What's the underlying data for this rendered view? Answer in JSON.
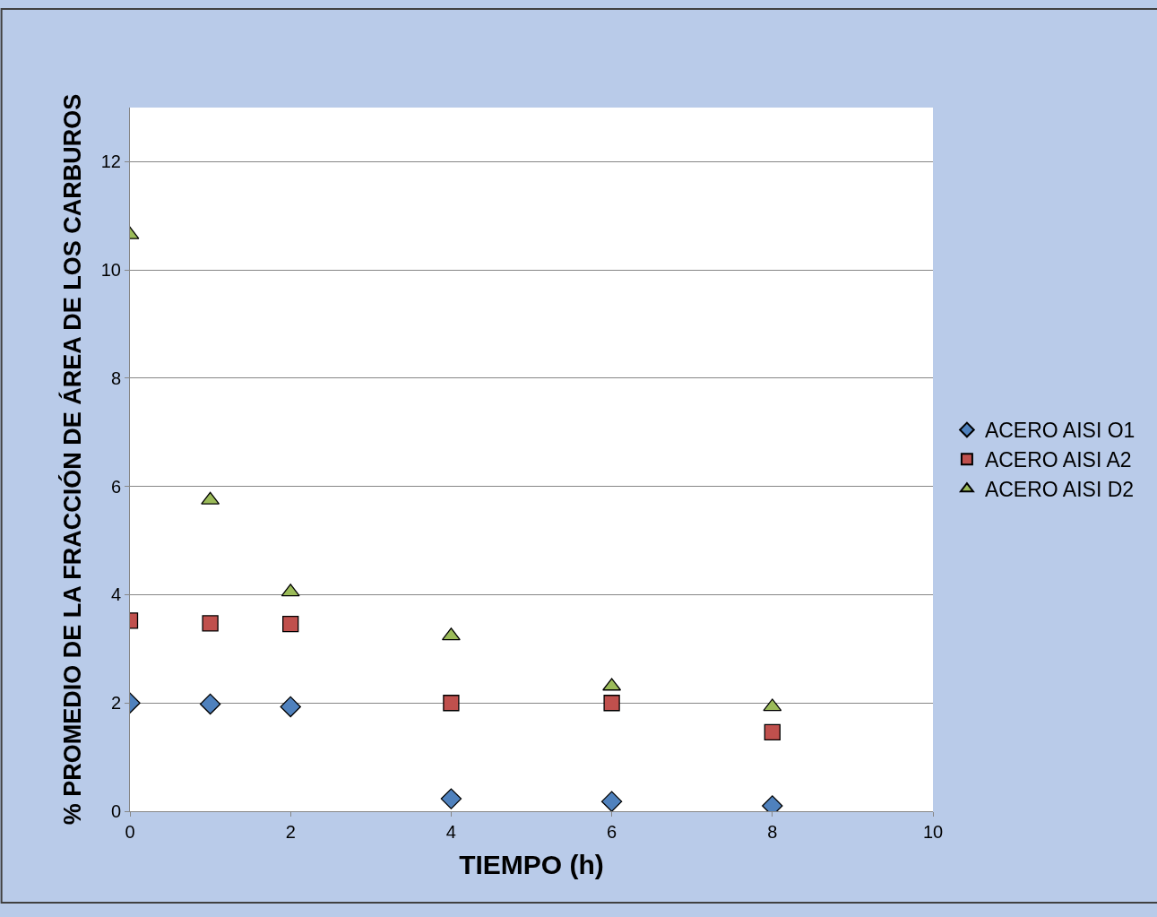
{
  "chart_data": {
    "type": "scatter",
    "xlabel": "TIEMPO (h)",
    "ylabel": "% PROMEDIO DE LA FRACCIÓN DE ÁREA DE LOS CARBUROS",
    "x": [
      0,
      1,
      2,
      4,
      6,
      8
    ],
    "series": [
      {
        "name": "ACERO AISI O1",
        "color": "#4f81bd",
        "marker": "diamond",
        "values": [
          2.0,
          1.98,
          1.93,
          0.23,
          0.18,
          0.1
        ]
      },
      {
        "name": "ACERO AISI A2",
        "color": "#c0504d",
        "marker": "square",
        "values": [
          3.52,
          3.47,
          3.46,
          2.0,
          2.0,
          1.46
        ]
      },
      {
        "name": "ACERO AISI D2",
        "color": "#9bbb59",
        "marker": "triangle",
        "values": [
          10.65,
          5.75,
          4.05,
          3.24,
          2.31,
          1.93
        ]
      }
    ],
    "xlim": [
      0,
      10
    ],
    "xticks": [
      0,
      2,
      4,
      6,
      8,
      10
    ],
    "ylim": [
      0,
      13
    ],
    "yticks": [
      0,
      2,
      4,
      6,
      8,
      10,
      12
    ],
    "grid": "y",
    "legend": "right"
  }
}
